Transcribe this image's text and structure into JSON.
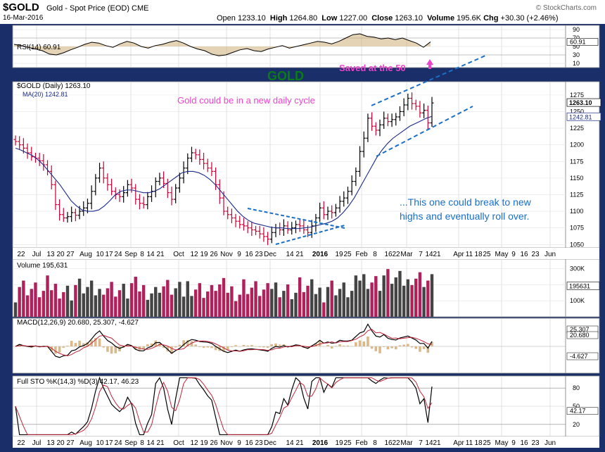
{
  "header": {
    "symbol": "$GOLD",
    "description": "Gold - Spot Price (EOD)  CME",
    "date": "16-Mar-2016",
    "open_label": "Open",
    "open": "1233.10",
    "high_label": "High",
    "high": "1264.80",
    "low_label": "Low",
    "low": "1227.00",
    "close_label": "Close",
    "close": "1263.10",
    "volume_label": "Volume",
    "volume": "195.6K",
    "chg_label": "Chg",
    "chg": "+30.30 (+2.46%)",
    "credit": "© StockCharts.com"
  },
  "colors": {
    "up": "#000000",
    "down": "#cc0033",
    "ma": "#1a2a8a",
    "annot_pink": "#ee44cc",
    "annot_blue": "#1a6fc8",
    "title_green": "#0a7a1a",
    "panel_bg": "#ffffff",
    "frame": "#1a2e6a",
    "vol_up": "#444444",
    "vol_down": "#b0205a",
    "macd_hist": "#d9b98a"
  },
  "chart_data": [
    {
      "type": "line",
      "panel": "rsi",
      "title": "RSI(14) 60.91",
      "ylim": [
        0,
        100
      ],
      "ticks": [
        10,
        30,
        50,
        70,
        90
      ],
      "last_label": "60.91",
      "y_x": [
        0,
        10,
        20,
        30,
        40,
        50,
        60,
        70,
        80,
        90,
        100,
        110,
        120,
        130,
        140,
        150,
        160,
        170,
        180,
        190,
        200,
        210,
        220,
        230,
        240,
        250,
        260,
        270,
        280,
        290,
        300,
        310,
        320,
        330,
        340,
        350,
        360,
        370,
        380,
        390,
        400,
        410,
        420,
        430,
        440,
        450,
        460,
        470,
        480,
        490,
        500,
        510,
        520,
        530,
        540,
        550,
        560,
        570,
        580,
        590
      ],
      "values": [
        55,
        52,
        48,
        44,
        40,
        32,
        30,
        35,
        42,
        48,
        55,
        60,
        58,
        52,
        48,
        56,
        62,
        58,
        50,
        46,
        52,
        55,
        60,
        64,
        58,
        50,
        44,
        40,
        32,
        28,
        30,
        36,
        42,
        45,
        40,
        38,
        44,
        48,
        52,
        46,
        50,
        54,
        58,
        62,
        60,
        56,
        62,
        70,
        78,
        80,
        74,
        72,
        68,
        70,
        66,
        70,
        64,
        58,
        48,
        60.91
      ]
    },
    {
      "type": "candlestick",
      "panel": "price",
      "title": "$GOLD (Daily) 1263.10",
      "ma_label": "MA(20) 1242.81",
      "ylim": [
        1045,
        1295
      ],
      "ticks": [
        1050,
        1075,
        1100,
        1125,
        1150,
        1175,
        1200,
        1225,
        1250,
        1275
      ],
      "last_close": "1263.10",
      "ma_last": "1242.81",
      "closes": [
        1205,
        1200,
        1195,
        1188,
        1182,
        1180,
        1176,
        1170,
        1160,
        1140,
        1110,
        1095,
        1090,
        1092,
        1098,
        1094,
        1100,
        1105,
        1112,
        1130,
        1150,
        1165,
        1150,
        1140,
        1130,
        1125,
        1122,
        1128,
        1140,
        1135,
        1118,
        1112,
        1110,
        1122,
        1130,
        1145,
        1150,
        1142,
        1128,
        1118,
        1135,
        1150,
        1165,
        1180,
        1188,
        1185,
        1178,
        1172,
        1165,
        1160,
        1140,
        1120,
        1100,
        1095,
        1090,
        1085,
        1080,
        1078,
        1075,
        1072,
        1070,
        1066,
        1062,
        1058,
        1068,
        1075,
        1072,
        1078,
        1072,
        1075,
        1080,
        1078,
        1072,
        1068,
        1078,
        1090,
        1105,
        1095,
        1100,
        1098,
        1105,
        1115,
        1120,
        1130,
        1145,
        1160,
        1190,
        1210,
        1240,
        1228,
        1222,
        1230,
        1240,
        1235,
        1238,
        1242,
        1250,
        1260,
        1270,
        1262,
        1258,
        1248,
        1252,
        1233,
        1263
      ],
      "ma": [
        1195,
        1192,
        1188,
        1184,
        1178,
        1170,
        1160,
        1150,
        1140,
        1128,
        1116,
        1108,
        1102,
        1100,
        1100,
        1102,
        1108,
        1116,
        1125,
        1130,
        1132,
        1132,
        1130,
        1128,
        1128,
        1130,
        1134,
        1140,
        1146,
        1152,
        1158,
        1160,
        1160,
        1158,
        1154,
        1148,
        1140,
        1130,
        1120,
        1110,
        1100,
        1092,
        1086,
        1082,
        1080,
        1078,
        1076,
        1075,
        1075,
        1074,
        1074,
        1074,
        1075,
        1076,
        1078,
        1080,
        1082,
        1085,
        1090,
        1098,
        1108,
        1120,
        1135,
        1150,
        1165,
        1180,
        1192,
        1202,
        1210,
        1216,
        1222,
        1228,
        1232,
        1236,
        1240,
        1242.81
      ]
    },
    {
      "type": "bar",
      "panel": "volume",
      "title": "Volume 195,631",
      "ylim": [
        0,
        360000
      ],
      "ticks_label": [
        "100K",
        "200K",
        "300K"
      ],
      "last_label": "195631"
    },
    {
      "type": "line",
      "panel": "macd",
      "title": "MACD(12,26,9) 20.680, 25.307, -4.627",
      "labels": [
        "25.307",
        "20.680",
        "-4.627"
      ]
    },
    {
      "type": "line",
      "panel": "sto",
      "title": "Full STO %K(14,3) %D(3) 42.17, 46.23",
      "ticks": [
        20,
        50,
        80
      ],
      "last_label": "42.17"
    }
  ],
  "xaxis": [
    "22",
    "Jul",
    "13",
    "20",
    "27",
    "Aug",
    "10",
    "17",
    "24",
    "Sep",
    "8",
    "14",
    "21",
    "Oct",
    "12",
    "19",
    "26",
    "Nov",
    "9",
    "16",
    "23",
    "Dec",
    "14",
    "21",
    "2016",
    "19",
    "25",
    "Feb",
    "8",
    "16",
    "22",
    "Mar",
    "7",
    "14",
    "21",
    "Apr",
    "11",
    "18",
    "25",
    "May",
    "9",
    "16",
    "23",
    "Jun"
  ],
  "annotations": {
    "title": "GOLD",
    "saved": "Saved at the 50",
    "cycle": "Gold could be in a new daily cycle",
    "break_line1": "...This one could break to new",
    "break_line2": "highs and eventually roll over."
  }
}
